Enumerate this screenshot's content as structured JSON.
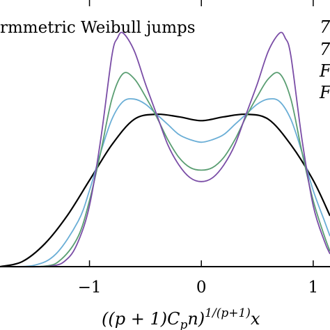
{
  "chart_data": {
    "type": "line",
    "title": "rmmetric Weibull jumps",
    "xlabel": "((p + 1)C",
    "xlabel_sub": "p",
    "xlabel_tail": "n)",
    "xlabel_sup": "1/(p+1)",
    "xlabel_var": "x",
    "xlim": [
      -1.8,
      1.15
    ],
    "ylim": [
      0,
      1.05
    ],
    "x_ticks": [
      -1,
      0,
      1
    ],
    "x_tick_labels": [
      "−1",
      "0",
      "1"
    ],
    "legend_glyphs": [
      "7",
      "7",
      "F",
      "F"
    ],
    "legend_placement": "top-right, clipped",
    "series": [
      {
        "color": "#000000",
        "x": [
          -1.8,
          -1.6,
          -1.4,
          -1.2,
          -1.0,
          -0.8,
          -0.6,
          -0.4,
          -0.2,
          0.0,
          0.2,
          0.4,
          0.6,
          0.8,
          1.0,
          1.15
        ],
        "y": [
          0.0,
          0.02,
          0.09,
          0.2,
          0.34,
          0.48,
          0.58,
          0.6,
          0.59,
          0.575,
          0.59,
          0.6,
          0.58,
          0.48,
          0.34,
          0.2
        ]
      },
      {
        "color": "#6aaed6",
        "x": [
          -1.8,
          -1.5,
          -1.3,
          -1.1,
          -1.0,
          -0.9,
          -0.8,
          -0.7,
          -0.6,
          -0.5,
          -0.4,
          -0.3,
          -0.2,
          -0.1,
          0.0,
          0.1,
          0.2,
          0.3,
          0.4,
          0.5,
          0.6,
          0.7,
          0.8,
          0.9,
          1.0,
          1.1,
          1.15
        ],
        "y": [
          0.0,
          0.005,
          0.05,
          0.18,
          0.3,
          0.45,
          0.58,
          0.65,
          0.66,
          0.64,
          0.6,
          0.56,
          0.52,
          0.5,
          0.49,
          0.5,
          0.52,
          0.56,
          0.6,
          0.64,
          0.66,
          0.65,
          0.58,
          0.45,
          0.3,
          0.18,
          0.12
        ]
      },
      {
        "color": "#5a9e72",
        "x": [
          -1.8,
          -1.4,
          -1.25,
          -1.1,
          -1.0,
          -0.9,
          -0.8,
          -0.7,
          -0.6,
          -0.5,
          -0.4,
          -0.3,
          -0.2,
          -0.1,
          0.0,
          0.1,
          0.2,
          0.3,
          0.4,
          0.5,
          0.6,
          0.7,
          0.8,
          0.9,
          1.0,
          1.1,
          1.15
        ],
        "y": [
          0.0,
          0.002,
          0.03,
          0.12,
          0.26,
          0.45,
          0.66,
          0.76,
          0.74,
          0.67,
          0.59,
          0.5,
          0.43,
          0.39,
          0.38,
          0.39,
          0.43,
          0.5,
          0.59,
          0.67,
          0.74,
          0.76,
          0.66,
          0.45,
          0.26,
          0.12,
          0.06
        ]
      },
      {
        "color": "#7a4da6",
        "x": [
          -1.8,
          -1.35,
          -1.2,
          -1.1,
          -1.0,
          -0.9,
          -0.8,
          -0.75,
          -0.7,
          -0.6,
          -0.5,
          -0.4,
          -0.3,
          -0.2,
          -0.1,
          0.0,
          0.1,
          0.2,
          0.3,
          0.4,
          0.5,
          0.6,
          0.7,
          0.75,
          0.8,
          0.9,
          1.0,
          1.1,
          1.15
        ],
        "y": [
          0.0,
          0.002,
          0.03,
          0.1,
          0.24,
          0.5,
          0.83,
          0.9,
          0.92,
          0.85,
          0.72,
          0.6,
          0.48,
          0.4,
          0.35,
          0.335,
          0.35,
          0.4,
          0.48,
          0.6,
          0.72,
          0.85,
          0.92,
          0.9,
          0.83,
          0.5,
          0.24,
          0.1,
          0.05
        ]
      }
    ],
    "grid": false
  }
}
